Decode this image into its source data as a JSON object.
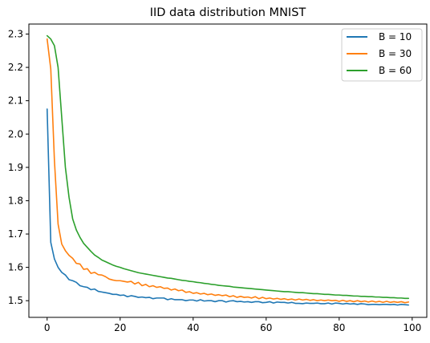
{
  "chart_data": {
    "type": "line",
    "title": "IID data distribution MNIST",
    "xlabel": "",
    "ylabel": "",
    "xlim": [
      -5,
      104
    ],
    "ylim": [
      1.45,
      2.33
    ],
    "xticks": [
      0,
      20,
      40,
      60,
      80,
      100
    ],
    "yticks": [
      1.5,
      1.6,
      1.7,
      1.8,
      1.9,
      2.0,
      2.1,
      2.2,
      2.3
    ],
    "grid": false,
    "legend_position": "top-right",
    "x": [
      0,
      1,
      2,
      3,
      4,
      5,
      6,
      7,
      8,
      9,
      10,
      11,
      12,
      13,
      14,
      15,
      16,
      17,
      18,
      19,
      20,
      21,
      22,
      23,
      24,
      25,
      26,
      27,
      28,
      29,
      30,
      31,
      32,
      33,
      34,
      35,
      36,
      37,
      38,
      39,
      40,
      41,
      42,
      43,
      44,
      45,
      46,
      47,
      48,
      49,
      50,
      51,
      52,
      53,
      54,
      55,
      56,
      57,
      58,
      59,
      60,
      61,
      62,
      63,
      64,
      65,
      66,
      67,
      68,
      69,
      70,
      71,
      72,
      73,
      74,
      75,
      76,
      77,
      78,
      79,
      80,
      81,
      82,
      83,
      84,
      85,
      86,
      87,
      88,
      89,
      90,
      91,
      92,
      93,
      94,
      95,
      96,
      97,
      98,
      99
    ],
    "series": [
      {
        "name": "B = 10",
        "color": "#1f77b4",
        "values": [
          2.075,
          1.675,
          1.625,
          1.6,
          1.585,
          1.577,
          1.563,
          1.56,
          1.555,
          1.545,
          1.542,
          1.54,
          1.533,
          1.535,
          1.528,
          1.526,
          1.524,
          1.522,
          1.519,
          1.519,
          1.516,
          1.517,
          1.512,
          1.515,
          1.513,
          1.51,
          1.511,
          1.509,
          1.51,
          1.506,
          1.508,
          1.508,
          1.508,
          1.503,
          1.506,
          1.503,
          1.503,
          1.503,
          1.5,
          1.502,
          1.502,
          1.499,
          1.503,
          1.499,
          1.5,
          1.5,
          1.497,
          1.5,
          1.5,
          1.496,
          1.499,
          1.5,
          1.497,
          1.498,
          1.496,
          1.497,
          1.495,
          1.497,
          1.497,
          1.494,
          1.495,
          1.497,
          1.493,
          1.496,
          1.495,
          1.495,
          1.493,
          1.495,
          1.492,
          1.492,
          1.491,
          1.493,
          1.492,
          1.492,
          1.493,
          1.491,
          1.491,
          1.493,
          1.49,
          1.493,
          1.492,
          1.49,
          1.492,
          1.49,
          1.491,
          1.489,
          1.491,
          1.49,
          1.488,
          1.489,
          1.489,
          1.488,
          1.489,
          1.489,
          1.488,
          1.489,
          1.487,
          1.489,
          1.488,
          1.487
        ]
      },
      {
        "name": "B = 30",
        "color": "#ff7f0e",
        "values": [
          2.285,
          2.195,
          1.92,
          1.73,
          1.67,
          1.65,
          1.636,
          1.627,
          1.612,
          1.61,
          1.594,
          1.596,
          1.582,
          1.585,
          1.578,
          1.577,
          1.572,
          1.565,
          1.562,
          1.56,
          1.56,
          1.558,
          1.556,
          1.558,
          1.55,
          1.555,
          1.545,
          1.549,
          1.542,
          1.545,
          1.54,
          1.542,
          1.537,
          1.538,
          1.532,
          1.535,
          1.53,
          1.532,
          1.525,
          1.527,
          1.522,
          1.524,
          1.52,
          1.522,
          1.518,
          1.52,
          1.516,
          1.518,
          1.515,
          1.517,
          1.512,
          1.515,
          1.51,
          1.513,
          1.51,
          1.511,
          1.508,
          1.512,
          1.506,
          1.51,
          1.506,
          1.508,
          1.505,
          1.507,
          1.504,
          1.506,
          1.503,
          1.505,
          1.502,
          1.505,
          1.502,
          1.504,
          1.501,
          1.503,
          1.5,
          1.502,
          1.5,
          1.502,
          1.5,
          1.501,
          1.498,
          1.501,
          1.498,
          1.5,
          1.497,
          1.5,
          1.497,
          1.499,
          1.496,
          1.499,
          1.496,
          1.498,
          1.495,
          1.498,
          1.495,
          1.497,
          1.495,
          1.497,
          1.494,
          1.496
        ]
      },
      {
        "name": "B = 60",
        "color": "#2ca02c",
        "values": [
          2.295,
          2.285,
          2.265,
          2.2,
          2.05,
          1.9,
          1.81,
          1.745,
          1.712,
          1.69,
          1.672,
          1.66,
          1.648,
          1.637,
          1.63,
          1.622,
          1.617,
          1.612,
          1.607,
          1.603,
          1.6,
          1.596,
          1.593,
          1.59,
          1.587,
          1.584,
          1.582,
          1.58,
          1.578,
          1.576,
          1.574,
          1.572,
          1.57,
          1.568,
          1.567,
          1.565,
          1.563,
          1.561,
          1.56,
          1.558,
          1.557,
          1.555,
          1.554,
          1.552,
          1.551,
          1.549,
          1.548,
          1.546,
          1.545,
          1.544,
          1.543,
          1.541,
          1.54,
          1.539,
          1.538,
          1.537,
          1.536,
          1.535,
          1.534,
          1.533,
          1.532,
          1.531,
          1.53,
          1.529,
          1.528,
          1.527,
          1.527,
          1.526,
          1.525,
          1.524,
          1.524,
          1.523,
          1.522,
          1.521,
          1.521,
          1.52,
          1.519,
          1.519,
          1.518,
          1.517,
          1.517,
          1.516,
          1.516,
          1.515,
          1.514,
          1.514,
          1.513,
          1.513,
          1.512,
          1.512,
          1.511,
          1.511,
          1.51,
          1.51,
          1.509,
          1.509,
          1.508,
          1.508,
          1.507,
          1.507
        ]
      }
    ]
  }
}
